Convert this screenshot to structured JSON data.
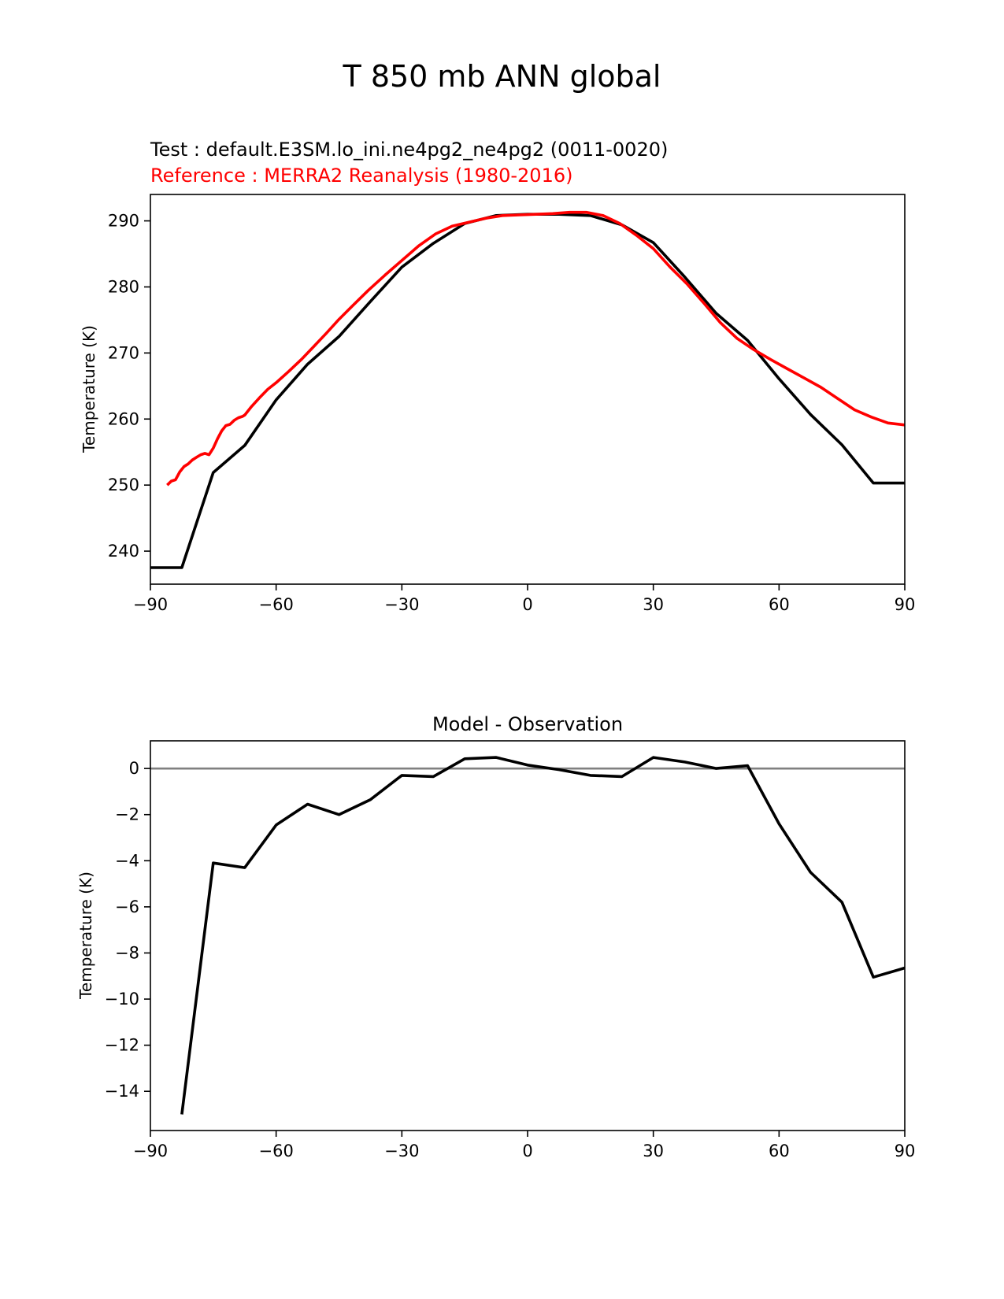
{
  "figure": {
    "title": "T 850 mb ANN global"
  },
  "chart_data": [
    {
      "type": "line",
      "test_label": "Test : default.E3SM.lo_ini.ne4pg2_ne4pg2 (0011-0020)",
      "reference_label": "Reference : MERRA2 Reanalysis (1980-2016)",
      "xlabel": "",
      "ylabel": "Temperature (K)",
      "xlim": [
        -90,
        90
      ],
      "ylim": [
        235,
        294
      ],
      "xticks": [
        -90,
        -60,
        -30,
        0,
        30,
        60,
        90
      ],
      "xtick_labels": [
        "−90",
        "−60",
        "−30",
        "0",
        "30",
        "60",
        "90"
      ],
      "yticks": [
        240,
        250,
        260,
        270,
        280,
        290
      ],
      "ytick_labels": [
        "240",
        "250",
        "260",
        "270",
        "280",
        "290"
      ],
      "grid": false,
      "series": [
        {
          "color": "#000000",
          "x": [
            -90,
            -82.5,
            -75,
            -67.5,
            -60,
            -52.5,
            -45,
            -37.5,
            -30,
            -22.5,
            -15,
            -7.5,
            0,
            7.5,
            15,
            22.5,
            30,
            37.5,
            45,
            52.5,
            60,
            67.5,
            75,
            82.5,
            90
          ],
          "y": [
            237.5,
            237.5,
            251.9,
            256.0,
            262.9,
            268.3,
            272.5,
            277.8,
            283.0,
            286.6,
            289.6,
            290.8,
            291.0,
            291.0,
            290.8,
            289.4,
            286.7,
            281.5,
            276.0,
            271.9,
            266.1,
            260.7,
            256.1,
            250.3,
            250.3
          ]
        },
        {
          "color": "#ff0000",
          "x": [
            -86,
            -85,
            -84,
            -83,
            -82,
            -81,
            -80,
            -79,
            -78,
            -77,
            -76,
            -75,
            -74,
            -73,
            -72,
            -71,
            -70,
            -69,
            -68,
            -67.5,
            -66,
            -64,
            -62,
            -60,
            -57,
            -54,
            -51,
            -48,
            -45,
            -42,
            -38,
            -34,
            -30,
            -26,
            -22,
            -18,
            -14,
            -10,
            -6,
            -2,
            2,
            6,
            10,
            14,
            18,
            22,
            26,
            30,
            34,
            38,
            42,
            46,
            50,
            54,
            58,
            62,
            66,
            70,
            74,
            78,
            82,
            86,
            90
          ],
          "y": [
            250.0,
            250.6,
            250.8,
            252.0,
            252.8,
            253.2,
            253.8,
            254.2,
            254.6,
            254.8,
            254.6,
            255.6,
            257.0,
            258.2,
            259.0,
            259.2,
            259.8,
            260.2,
            260.4,
            260.6,
            261.8,
            263.2,
            264.5,
            265.5,
            267.2,
            269.0,
            271.0,
            273.0,
            275.1,
            277.0,
            279.5,
            281.8,
            284.0,
            286.2,
            288.0,
            289.2,
            289.8,
            290.4,
            290.8,
            290.9,
            291.0,
            291.1,
            291.3,
            291.3,
            290.8,
            289.6,
            287.8,
            285.8,
            283.0,
            280.5,
            277.6,
            274.6,
            272.2,
            270.5,
            269.0,
            267.6,
            266.2,
            264.8,
            263.1,
            261.4,
            260.3,
            259.4,
            259.1
          ]
        }
      ]
    },
    {
      "type": "line",
      "title": "Model - Observation",
      "xlabel": "",
      "ylabel": "Temperature (K)",
      "xlim": [
        -90,
        90
      ],
      "ylim": [
        -15.7,
        1.2
      ],
      "xticks": [
        -90,
        -60,
        -30,
        0,
        30,
        60,
        90
      ],
      "xtick_labels": [
        "−90",
        "−60",
        "−30",
        "0",
        "30",
        "60",
        "90"
      ],
      "yticks": [
        0,
        -2,
        -4,
        -6,
        -8,
        -10,
        -12,
        -14
      ],
      "ytick_labels": [
        "0",
        "−2",
        "−4",
        "−6",
        "−8",
        "−10",
        "−12",
        "−14"
      ],
      "grid": false,
      "zero_line_color": "#808080",
      "series": [
        {
          "color": "#000000",
          "x": [
            -82.5,
            -75,
            -67.5,
            -60,
            -52.5,
            -45,
            -37.5,
            -30,
            -22.5,
            -15,
            -7.5,
            0,
            7.5,
            15,
            22.5,
            30,
            37.5,
            45,
            52.5,
            60,
            67.5,
            75,
            82.5,
            90
          ],
          "y": [
            -15.0,
            -4.1,
            -4.3,
            -2.45,
            -1.55,
            -2.0,
            -1.35,
            -0.3,
            -0.35,
            0.42,
            0.48,
            0.15,
            -0.05,
            -0.3,
            -0.35,
            0.48,
            0.28,
            0.0,
            0.12,
            -2.4,
            -4.5,
            -5.8,
            -9.05,
            -8.65
          ]
        }
      ]
    }
  ]
}
